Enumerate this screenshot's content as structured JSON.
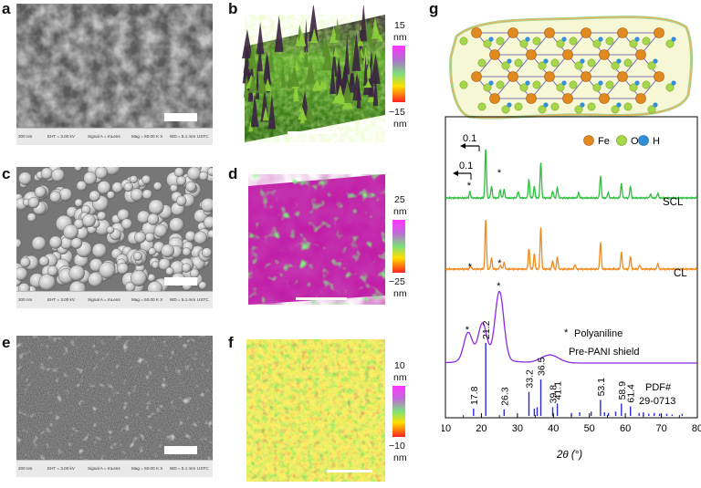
{
  "panels": {
    "a": {
      "label": "a",
      "footer": {
        "scale": "200 nm",
        "eht": "EHT = 3.00 kV",
        "signal": "Signal A = InLens",
        "mag": "Mag = 50.00 K X",
        "wd": "WD = 5.1 mm",
        "org": "USTC"
      }
    },
    "b": {
      "label": "b",
      "top_value": "15",
      "top_unit": "nm",
      "bottom_value": "−15",
      "bottom_unit": "nm"
    },
    "c": {
      "label": "c",
      "footer": {
        "scale": "200 nm",
        "eht": "EHT = 3.00 kV",
        "signal": "Signal A = InLens",
        "mag": "Mag = 50.00 K X",
        "wd": "WD = 5.1 mm",
        "org": "USTC"
      }
    },
    "d": {
      "label": "d",
      "top_value": "25",
      "top_unit": "nm",
      "bottom_value": "−25",
      "bottom_unit": "nm"
    },
    "e": {
      "label": "e",
      "footer": {
        "scale": "200 nm",
        "eht": "EHT = 3.00 kV",
        "signal": "Signal A = InLens",
        "mag": "Mag = 50.00 K X",
        "wd": "WD = 5.1 mm",
        "org": "USTC"
      }
    },
    "f": {
      "label": "f",
      "top_value": "10",
      "top_unit": "nm",
      "bottom_value": "−10",
      "bottom_unit": "nm"
    },
    "g": {
      "label": "g",
      "legend_fe": "Fe",
      "legend_o": "O",
      "legend_h": "H",
      "arrow1": "0.1",
      "arrow2": "0.1",
      "series_scl": "SCL",
      "series_cl": "CL",
      "polyaniline_marker": "*",
      "polyaniline_label": "Polyaniline",
      "series_shield": "Pre-PANI shield",
      "pdf_line1": "PDF#",
      "pdf_line2": "29-0713",
      "xaxis_label": "2θ (°)"
    }
  },
  "chart_data": {
    "type": "line",
    "title": "",
    "xlabel": "2θ (°)",
    "ylabel": "",
    "xlim": [
      10,
      80
    ],
    "x_ticks": [
      10,
      20,
      30,
      40,
      50,
      60,
      70,
      80
    ],
    "series": [
      {
        "name": "SCL",
        "color": "#2fbf3f",
        "peaks": [
          {
            "x": 16.8,
            "h": 0.12,
            "star": true
          },
          {
            "x": 21.2,
            "h": 0.95
          },
          {
            "x": 22.8,
            "h": 0.22
          },
          {
            "x": 25.2,
            "h": 0.15,
            "star": true
          },
          {
            "x": 26.3,
            "h": 0.16
          },
          {
            "x": 30.2,
            "h": 0.12
          },
          {
            "x": 33.2,
            "h": 0.34
          },
          {
            "x": 34.7,
            "h": 0.22
          },
          {
            "x": 36.5,
            "h": 0.68
          },
          {
            "x": 39.8,
            "h": 0.13
          },
          {
            "x": 41.1,
            "h": 0.2
          },
          {
            "x": 47.0,
            "h": 0.1
          },
          {
            "x": 53.1,
            "h": 0.42
          },
          {
            "x": 55.2,
            "h": 0.1
          },
          {
            "x": 58.9,
            "h": 0.27
          },
          {
            "x": 61.4,
            "h": 0.22
          },
          {
            "x": 67.0,
            "h": 0.07
          },
          {
            "x": 69.0,
            "h": 0.09
          }
        ]
      },
      {
        "name": "CL",
        "color": "#f08a1e",
        "peaks": [
          {
            "x": 17.0,
            "h": 0.06,
            "star": true
          },
          {
            "x": 21.2,
            "h": 0.9
          },
          {
            "x": 22.8,
            "h": 0.2
          },
          {
            "x": 25.3,
            "h": 0.07,
            "star": true
          },
          {
            "x": 26.3,
            "h": 0.12
          },
          {
            "x": 33.2,
            "h": 0.36
          },
          {
            "x": 34.7,
            "h": 0.27
          },
          {
            "x": 36.5,
            "h": 0.75
          },
          {
            "x": 39.8,
            "h": 0.15
          },
          {
            "x": 41.1,
            "h": 0.22
          },
          {
            "x": 46.0,
            "h": 0.08
          },
          {
            "x": 53.1,
            "h": 0.48
          },
          {
            "x": 58.9,
            "h": 0.3
          },
          {
            "x": 61.4,
            "h": 0.22
          },
          {
            "x": 64.0,
            "h": 0.07
          },
          {
            "x": 69.0,
            "h": 0.1
          }
        ]
      },
      {
        "name": "Pre-PANI shield",
        "color": "#8a2be2",
        "peaks": [
          {
            "x": 16.3,
            "h": 0.35,
            "star": true
          },
          {
            "x": 20.3,
            "h": 0.45
          },
          {
            "x": 25.0,
            "h": 0.85,
            "star": true
          },
          {
            "x": 39.0,
            "h": 0.1
          }
        ]
      },
      {
        "name": "PDF# 29-0713",
        "type": "stick",
        "color": "#2a2ad8",
        "sticks": [
          {
            "x": 17.8,
            "h": 0.1,
            "label": "17.8"
          },
          {
            "x": 21.2,
            "h": 1.0,
            "label": "21.2"
          },
          {
            "x": 26.3,
            "h": 0.09,
            "label": "26.3"
          },
          {
            "x": 33.2,
            "h": 0.33,
            "label": "33.2"
          },
          {
            "x": 34.7,
            "h": 0.1
          },
          {
            "x": 35.5,
            "h": 0.12
          },
          {
            "x": 36.5,
            "h": 0.5,
            "label": "36.5"
          },
          {
            "x": 39.8,
            "h": 0.12,
            "label": "39.8"
          },
          {
            "x": 41.1,
            "h": 0.17,
            "label": "41.1"
          },
          {
            "x": 45.0,
            "h": 0.04
          },
          {
            "x": 47.3,
            "h": 0.05
          },
          {
            "x": 50.5,
            "h": 0.06
          },
          {
            "x": 53.1,
            "h": 0.22,
            "label": "53.1"
          },
          {
            "x": 54.2,
            "h": 0.05
          },
          {
            "x": 55.3,
            "h": 0.04
          },
          {
            "x": 57.3,
            "h": 0.06
          },
          {
            "x": 58.9,
            "h": 0.17,
            "label": "58.9"
          },
          {
            "x": 61.4,
            "h": 0.13,
            "label": "61.4"
          },
          {
            "x": 63.8,
            "h": 0.04
          },
          {
            "x": 65.0,
            "h": 0.05
          },
          {
            "x": 66.5,
            "h": 0.03
          },
          {
            "x": 68.0,
            "h": 0.04
          },
          {
            "x": 69.5,
            "h": 0.03
          },
          {
            "x": 71.5,
            "h": 0.03
          },
          {
            "x": 73.0,
            "h": 0.02
          },
          {
            "x": 75.8,
            "h": 0.03
          }
        ]
      }
    ]
  }
}
